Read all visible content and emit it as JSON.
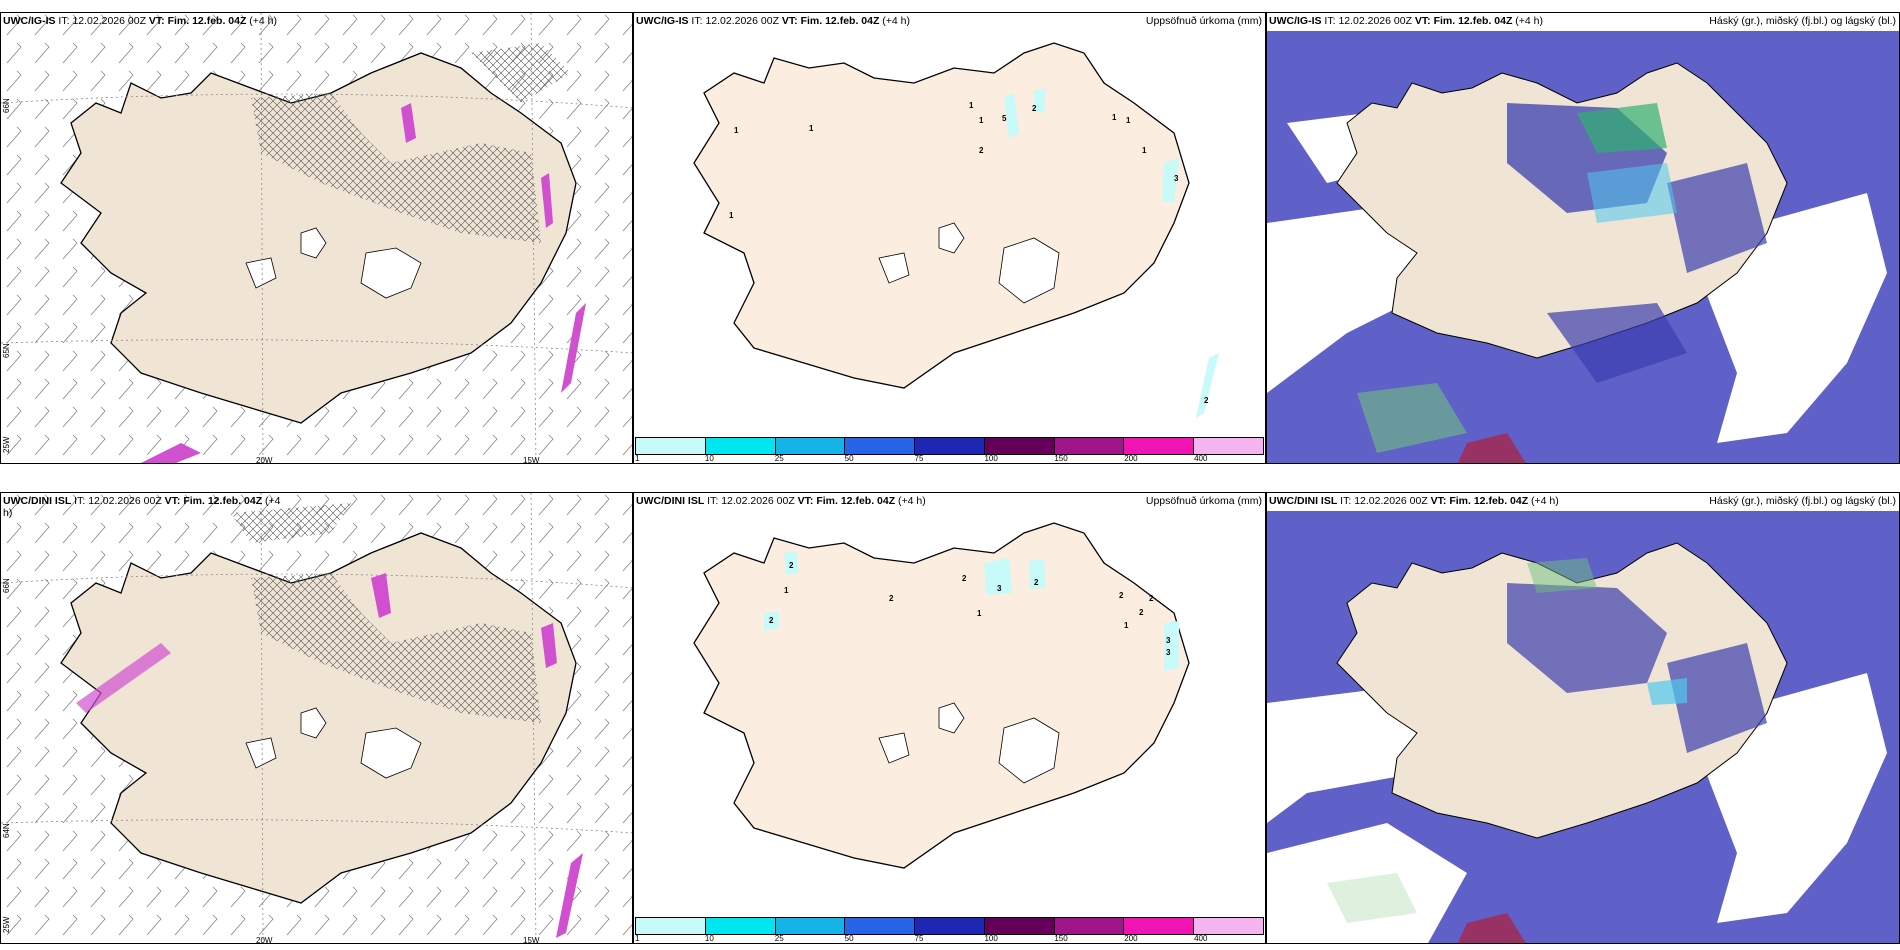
{
  "panels": [
    {
      "id": "p1",
      "header": {
        "model": "UWC/IG-IS",
        "it_label": "IT:",
        "it_value": "12.02.2026 00Z",
        "vt_label": "VT:",
        "vt_value": "Fim. 12.feb. 04Z",
        "lead": "(+4 h)"
      },
      "right_title": ""
    },
    {
      "id": "p2",
      "header": {
        "model": "UWC/IG-IS",
        "it_label": "IT:",
        "it_value": "12.02.2026 00Z",
        "vt_label": "VT:",
        "vt_value": "Fim. 12.feb. 04Z",
        "lead": "(+4 h)"
      },
      "right_title": "Uppsöfnuð úrkoma (mm)"
    },
    {
      "id": "p3",
      "header": {
        "model": "UWC/IG-IS",
        "it_label": "IT:",
        "it_value": "12.02.2026 00Z",
        "vt_label": "VT:",
        "vt_value": "Fim. 12.feb. 04Z",
        "lead": "(+4 h)"
      },
      "right_title": "Háský (gr.), miðský (fj.bl.) og lágský (bl.)"
    },
    {
      "id": "p4",
      "header": {
        "model": "UWC/DINI ISL",
        "it_label": "IT:",
        "it_value": "12.02.2026 00Z",
        "vt_label": "VT:",
        "vt_value": "Fim. 12.feb. 04Z",
        "lead": "(+4",
        "lead2": "h)"
      },
      "right_title": ""
    },
    {
      "id": "p5",
      "header": {
        "model": "UWC/DINI ISL",
        "it_label": "IT:",
        "it_value": "12.02.2026 00Z",
        "vt_label": "VT:",
        "vt_value": "Fim. 12.feb. 04Z",
        "lead": "(+4 h)"
      },
      "right_title": "Uppsöfnuð úrkoma (mm)"
    },
    {
      "id": "p6",
      "header": {
        "model": "UWC/DINI ISL",
        "it_label": "IT:",
        "it_value": "12.02.2026 00Z",
        "vt_label": "VT:",
        "vt_value": "Fim. 12.feb. 04Z",
        "lead": "(+4 h)"
      },
      "right_title": "Háský (gr.), miðský (fj.bl.) og lágský (bl.)"
    }
  ],
  "graticule": {
    "lat_labels": [
      "66N",
      "65N",
      "64N"
    ],
    "lon_labels": [
      "25W",
      "20W",
      "15W"
    ]
  },
  "colorbar": {
    "labels": [
      "1",
      "10",
      "25",
      "50",
      "75",
      "100",
      "150",
      "200",
      "400"
    ],
    "colors": [
      "#c8fafa",
      "#00e6f0",
      "#14b4e6",
      "#2864e6",
      "#1e28b4",
      "#64005a",
      "#a0148c",
      "#f014b4",
      "#f5b4f0"
    ]
  },
  "precip_labels_top": [
    "1",
    "1",
    "1",
    "1",
    "5",
    "2",
    "1",
    "1",
    "2",
    "1",
    "3",
    "1",
    "2"
  ],
  "precip_labels_bottom": [
    "2",
    "1",
    "2",
    "2",
    "3",
    "2",
    "1",
    "2",
    "2",
    "2",
    "1",
    "3",
    "3",
    "2"
  ],
  "colors": {
    "land": "#f0e4d4",
    "land_precip": "#fbeee0",
    "cloud_high": "#5f60c8",
    "cloud_mid": "#3a3fae",
    "cloud_low": "#50c8f0",
    "snow": "#ffffff",
    "mixed_precip": "#d050d0"
  }
}
